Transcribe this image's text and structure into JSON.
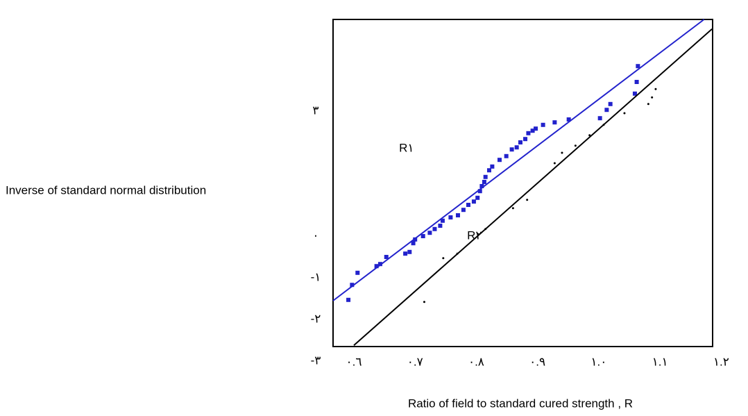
{
  "chart_data": {
    "type": "scatter",
    "ylabel": "Inverse of standard normal distribution",
    "xlabel": "Ratio of field to standard cured strength , R",
    "xlim": [
      0.566,
      1.186
    ],
    "ylim": [
      -2.65,
      5.2
    ],
    "xticks": [
      {
        "value": 0.6,
        "label": "٠.٦"
      },
      {
        "value": 0.7,
        "label": "٠.٧"
      },
      {
        "value": 0.8,
        "label": "٠.٨"
      },
      {
        "value": 0.9,
        "label": "٠.٩"
      },
      {
        "value": 1.0,
        "label": "١.٠"
      },
      {
        "value": 1.1,
        "label": "١.١"
      },
      {
        "value": 1.2,
        "label": "١.٢"
      }
    ],
    "yticks": [
      {
        "value": 3,
        "label": "٣"
      },
      {
        "value": 0,
        "label": "٠"
      },
      {
        "value": -1,
        "label": "-١"
      },
      {
        "value": -2,
        "label": "-٢"
      },
      {
        "value": -3,
        "label": "-٣"
      }
    ],
    "series": [
      {
        "name": "R١",
        "color": "#2222cc",
        "x": [
          0.591,
          0.597,
          0.606,
          0.637,
          0.643,
          0.653,
          0.684,
          0.691,
          0.697,
          0.7,
          0.713,
          0.724,
          0.732,
          0.741,
          0.745,
          0.758,
          0.77,
          0.779,
          0.787,
          0.796,
          0.802,
          0.806,
          0.809,
          0.813,
          0.815,
          0.821,
          0.826,
          0.838,
          0.849,
          0.858,
          0.866,
          0.872,
          0.88,
          0.885,
          0.892,
          0.897,
          0.909,
          0.928,
          0.951,
          1.002,
          1.013,
          1.019,
          1.059,
          1.062,
          1.064
        ],
        "values": [
          -1.53,
          -1.17,
          -0.88,
          -0.72,
          -0.67,
          -0.5,
          -0.42,
          -0.38,
          -0.17,
          -0.08,
          0,
          0.08,
          0.17,
          0.25,
          0.37,
          0.45,
          0.5,
          0.63,
          0.75,
          0.83,
          0.92,
          1.08,
          1.2,
          1.3,
          1.42,
          1.58,
          1.67,
          1.83,
          1.92,
          2.08,
          2.13,
          2.25,
          2.33,
          2.47,
          2.53,
          2.58,
          2.67,
          2.73,
          2.8,
          2.83,
          3.03,
          3.17,
          3.42,
          3.7,
          4.08
        ],
        "fit": {
          "x": [
            0.566,
            1.172
          ],
          "values": [
            -1.55,
            5.2
          ]
        }
      },
      {
        "name": "R٢",
        "color": "#000000",
        "x": [
          0.715,
          0.746,
          0.769,
          0.815,
          0.86,
          0.883,
          0.928,
          0.94,
          0.962,
          0.985,
          1.008,
          1.042,
          1.081,
          1.087,
          1.093
        ],
        "values": [
          -1.58,
          -0.53,
          -0.42,
          0.17,
          0.67,
          0.87,
          1.75,
          2.0,
          2.17,
          2.42,
          2.67,
          2.95,
          3.17,
          3.33,
          3.53
        ],
        "fit": {
          "x": [
            0.6,
            1.185
          ],
          "values": [
            -2.62,
            4.97
          ]
        }
      }
    ]
  }
}
